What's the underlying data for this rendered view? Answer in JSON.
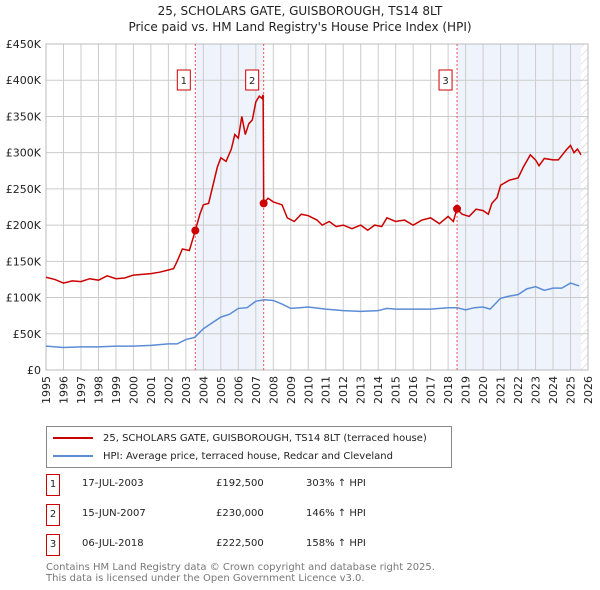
{
  "chart_data": {
    "type": "line",
    "title": "25, SCHOLARS GATE, GUISBOROUGH, TS14 8LT",
    "subtitle": "Price paid vs. HM Land Registry's House Price Index (HPI)",
    "xlim": [
      1995,
      2026
    ],
    "ylim": [
      0,
      450000
    ],
    "x_ticks": [
      "1995",
      "1996",
      "1997",
      "1998",
      "1999",
      "2000",
      "2001",
      "2002",
      "2003",
      "2004",
      "2005",
      "2006",
      "2007",
      "2008",
      "2009",
      "2010",
      "2011",
      "2012",
      "2013",
      "2014",
      "2015",
      "2016",
      "2017",
      "2018",
      "2019",
      "2020",
      "2021",
      "2022",
      "2023",
      "2024",
      "2025",
      "2026"
    ],
    "y_ticks": [
      "£0",
      "£50K",
      "£100K",
      "£150K",
      "£200K",
      "£250K",
      "£300K",
      "£350K",
      "£400K",
      "£450K"
    ],
    "grid": true,
    "series": [
      {
        "name": "25, SCHOLARS GATE, GUISBOROUGH, TS14 8LT (terraced house)",
        "color": "#cc0000",
        "points": [
          [
            1995,
            128
          ],
          [
            1995.5,
            125
          ],
          [
            1996,
            120
          ],
          [
            1996.5,
            123
          ],
          [
            1997,
            122
          ],
          [
            1997.5,
            126
          ],
          [
            1998,
            124
          ],
          [
            1998.5,
            130
          ],
          [
            1999,
            126
          ],
          [
            1999.5,
            127
          ],
          [
            2000,
            131
          ],
          [
            2000.5,
            132
          ],
          [
            2001,
            133
          ],
          [
            2001.5,
            135
          ],
          [
            2002,
            138
          ],
          [
            2002.3,
            140
          ],
          [
            2002.5,
            150
          ],
          [
            2002.8,
            167
          ],
          [
            2003.2,
            165
          ],
          [
            2003.54,
            192.5
          ],
          [
            2003.8,
            215
          ],
          [
            2004,
            228
          ],
          [
            2004.3,
            230
          ],
          [
            2004.6,
            260
          ],
          [
            2004.8,
            280
          ],
          [
            2005,
            293
          ],
          [
            2005.3,
            288
          ],
          [
            2005.6,
            305
          ],
          [
            2005.8,
            325
          ],
          [
            2006,
            320
          ],
          [
            2006.2,
            350
          ],
          [
            2006.4,
            325
          ],
          [
            2006.6,
            340
          ],
          [
            2006.8,
            345
          ],
          [
            2007,
            370
          ],
          [
            2007.2,
            378
          ],
          [
            2007.35,
            375
          ],
          [
            2007.42,
            380
          ],
          [
            2007.45,
            230
          ],
          [
            2007.7,
            237
          ],
          [
            2008,
            232
          ],
          [
            2008.5,
            228
          ],
          [
            2008.8,
            210
          ],
          [
            2009.2,
            205
          ],
          [
            2009.6,
            215
          ],
          [
            2010,
            213
          ],
          [
            2010.5,
            207
          ],
          [
            2010.8,
            200
          ],
          [
            2011.2,
            205
          ],
          [
            2011.6,
            198
          ],
          [
            2012,
            200
          ],
          [
            2012.5,
            195
          ],
          [
            2013,
            200
          ],
          [
            2013.4,
            193
          ],
          [
            2013.8,
            200
          ],
          [
            2014.2,
            198
          ],
          [
            2014.5,
            210
          ],
          [
            2015,
            205
          ],
          [
            2015.5,
            207
          ],
          [
            2016,
            200
          ],
          [
            2016.5,
            207
          ],
          [
            2017,
            210
          ],
          [
            2017.5,
            202
          ],
          [
            2018,
            212
          ],
          [
            2018.3,
            205
          ],
          [
            2018.5,
            222.5
          ],
          [
            2018.8,
            215
          ],
          [
            2019.2,
            212
          ],
          [
            2019.6,
            222
          ],
          [
            2020,
            220
          ],
          [
            2020.3,
            215
          ],
          [
            2020.5,
            230
          ],
          [
            2020.8,
            238
          ],
          [
            2021,
            255
          ],
          [
            2021.5,
            262
          ],
          [
            2022,
            265
          ],
          [
            2022.3,
            280
          ],
          [
            2022.7,
            297
          ],
          [
            2023,
            290
          ],
          [
            2023.2,
            282
          ],
          [
            2023.5,
            292
          ],
          [
            2024,
            290
          ],
          [
            2024.3,
            290
          ],
          [
            2024.8,
            305
          ],
          [
            2025,
            310
          ],
          [
            2025.2,
            300
          ],
          [
            2025.4,
            305
          ],
          [
            2025.6,
            297
          ]
        ]
      },
      {
        "name": "HPI: Average price, terraced house, Redcar and Cleveland",
        "color": "#5b8dd6",
        "points": [
          [
            1995,
            33
          ],
          [
            1996,
            31
          ],
          [
            1997,
            32
          ],
          [
            1998,
            32
          ],
          [
            1999,
            33
          ],
          [
            2000,
            33
          ],
          [
            2001,
            34
          ],
          [
            2002,
            36
          ],
          [
            2002.5,
            36
          ],
          [
            2003,
            42
          ],
          [
            2003.5,
            45
          ],
          [
            2004,
            57
          ],
          [
            2004.5,
            65
          ],
          [
            2005,
            73
          ],
          [
            2005.5,
            77
          ],
          [
            2006,
            85
          ],
          [
            2006.5,
            86
          ],
          [
            2007,
            95
          ],
          [
            2007.5,
            97
          ],
          [
            2008,
            96
          ],
          [
            2008.5,
            91
          ],
          [
            2009,
            85
          ],
          [
            2009.5,
            86
          ],
          [
            2010,
            87
          ],
          [
            2011,
            84
          ],
          [
            2012,
            82
          ],
          [
            2013,
            81
          ],
          [
            2014,
            82
          ],
          [
            2014.5,
            85
          ],
          [
            2015,
            84
          ],
          [
            2016,
            84
          ],
          [
            2017,
            84
          ],
          [
            2018,
            86
          ],
          [
            2018.5,
            86
          ],
          [
            2019,
            83
          ],
          [
            2019.5,
            86
          ],
          [
            2020,
            87
          ],
          [
            2020.4,
            84
          ],
          [
            2021,
            99
          ],
          [
            2021.5,
            102
          ],
          [
            2022,
            104
          ],
          [
            2022.5,
            112
          ],
          [
            2023,
            115
          ],
          [
            2023.5,
            110
          ],
          [
            2024,
            113
          ],
          [
            2024.5,
            113
          ],
          [
            2025,
            120
          ],
          [
            2025.5,
            116
          ]
        ]
      }
    ],
    "sales": [
      {
        "label": "1",
        "x": 2003.54,
        "value": 192.5,
        "date": "17-JUL-2003",
        "price": "£192,500",
        "hpi": "303% ↑ HPI"
      },
      {
        "label": "2",
        "x": 2007.45,
        "value": 230,
        "date": "15-JUN-2007",
        "price": "£230,000",
        "hpi": "146% ↑ HPI"
      },
      {
        "label": "3",
        "x": 2018.51,
        "value": 222.5,
        "date": "06-JUL-2018",
        "price": "£222,500",
        "hpi": "158% ↑ HPI"
      }
    ],
    "shaded_ranges": [
      [
        2003.54,
        2007.45
      ],
      [
        2018.51,
        2025.6
      ]
    ],
    "hatched_from": 2025.6,
    "legend_placement": "below"
  },
  "footer": {
    "line1": "Contains HM Land Registry data © Crown copyright and database right 2025.",
    "line2": "This data is licensed under the Open Government Licence v3.0."
  }
}
